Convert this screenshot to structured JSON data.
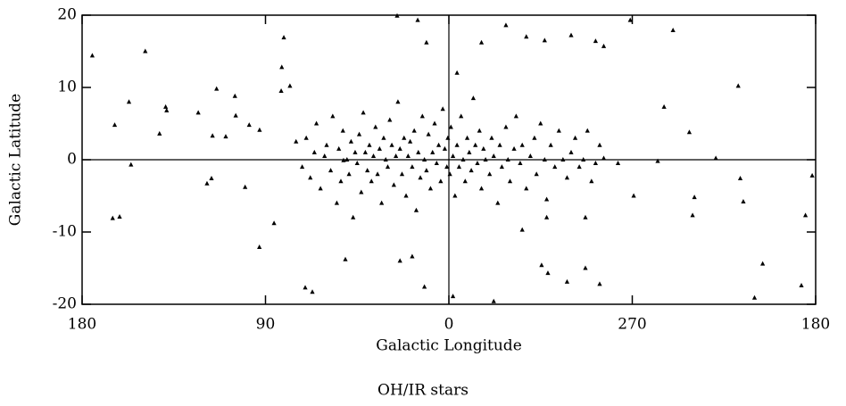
{
  "chart_data": {
    "type": "scatter",
    "title": "OH/IR stars",
    "x_label": "Galactic Longitude",
    "y_label": "Galactic Latitude",
    "color": "#000000",
    "xlim": [
      180,
      -180
    ],
    "xticks": [
      180,
      90,
      0,
      {
        "value": -90,
        "label": "270"
      },
      {
        "value": -180,
        "label": "180"
      }
    ],
    "ylim": [
      -20,
      20
    ],
    "yticks": [
      -20,
      -10,
      0,
      10,
      20
    ],
    "x": [
      175,
      149,
      157,
      139,
      138.5,
      142,
      164,
      123,
      114,
      109.5,
      105,
      104.6,
      116,
      118.7,
      116.5,
      165,
      161.6,
      156,
      98,
      100,
      93,
      85.8,
      92.9,
      81,
      82,
      82.3,
      78,
      70.5,
      67,
      50.8,
      51.7,
      25.4,
      15.3,
      11,
      -4,
      24,
      18,
      12,
      -2,
      -22,
      -16,
      -28,
      -38,
      -47,
      -60,
      -72,
      -76,
      -89,
      -105.6,
      -110,
      -118,
      -119.6,
      -120.5,
      -131,
      -142,
      -143,
      -144.5,
      -150,
      -154,
      -175,
      -173,
      -178.3,
      -67,
      -74,
      -58,
      -45.5,
      -48.6,
      -36,
      -90.7,
      -102.5,
      -83,
      -67,
      -48,
      75,
      72,
      70,
      68,
      66,
      65,
      63,
      61,
      60,
      58,
      57,
      55,
      54,
      53,
      52,
      50,
      49,
      48,
      47,
      46,
      45,
      44,
      43,
      42,
      41,
      40,
      39,
      38,
      37,
      36,
      35,
      34,
      33,
      32,
      31,
      30,
      29,
      28,
      27,
      26,
      25,
      24,
      23,
      22,
      21,
      20,
      19,
      18,
      17,
      16,
      15,
      14,
      13,
      12,
      11,
      10,
      9,
      8,
      7,
      6,
      5,
      4,
      3,
      2,
      1,
      0.5,
      -0.5,
      -1,
      -2,
      -3,
      -4,
      -5,
      -6,
      -7,
      -8,
      -9,
      -10,
      -11,
      -12,
      -13,
      -14,
      -15,
      -16,
      -17,
      -18,
      -20,
      -21,
      -22,
      -24,
      -25,
      -26,
      -28,
      -29,
      -30,
      -32,
      -33,
      -35,
      -36,
      -38,
      -40,
      -42,
      -43,
      -45,
      -47,
      -48,
      -50,
      -52,
      -54,
      -56,
      -58,
      -60,
      -62,
      -64,
      -66,
      -68,
      -70,
      -72,
      -74,
      -76
    ],
    "values": [
      14.4,
      15,
      8,
      7.3,
      6.8,
      3.6,
      4.8,
      6.5,
      9.8,
      3.2,
      8.8,
      6.1,
      3.3,
      -3.3,
      -2.6,
      -8.1,
      -7.9,
      -0.7,
      4.8,
      -3.8,
      -12.1,
      -8.8,
      4.1,
      16.9,
      12.8,
      9.5,
      10.2,
      -17.7,
      -18.3,
      -13.8,
      -0.1,
      19.9,
      19.3,
      16.2,
      12,
      -14,
      -13.4,
      -17.6,
      -18.9,
      -19.6,
      16.2,
      18.6,
      17,
      16.5,
      17.2,
      16.4,
      15.7,
      19.3,
      7.3,
      17.9,
      3.8,
      -7.7,
      -5.2,
      0.2,
      10.2,
      -2.6,
      -5.8,
      -19.1,
      -14.4,
      -7.7,
      -17.4,
      -2.2,
      -15,
      -17.2,
      -16.9,
      -14.6,
      -15.7,
      -9.7,
      -5,
      -0.2,
      -0.5,
      -8,
      -8,
      2.5,
      -1,
      3,
      -2.5,
      1,
      5,
      -4,
      0.5,
      2,
      -1.5,
      6,
      -6,
      1.5,
      -3,
      4,
      0,
      -2,
      2.5,
      -8,
      1,
      -0.5,
      3.5,
      -4.5,
      6.5,
      1,
      -1.5,
      2,
      -3,
      0.5,
      4.5,
      -2,
      1.5,
      -6,
      3,
      0,
      -1,
      5.5,
      2,
      -3.5,
      0.5,
      8,
      1.5,
      -2,
      3,
      -5,
      0.5,
      2.5,
      -1,
      4,
      -7,
      1,
      -2.5,
      6,
      0,
      -1.5,
      3.5,
      -4,
      1,
      5,
      -0.5,
      2,
      -3,
      7,
      1.5,
      -1,
      3,
      -2,
      4.5,
      0.5,
      -5,
      2,
      -1,
      6,
      0,
      -3,
      3,
      1,
      -1.5,
      8.5,
      2,
      -0.5,
      4,
      -4,
      1.5,
      0,
      -2,
      3,
      0.5,
      -6,
      2,
      -1,
      4.5,
      0,
      -3,
      1.5,
      6,
      -0.5,
      2,
      -4,
      0.5,
      3,
      -2,
      5,
      0,
      -5.5,
      2,
      -1,
      4,
      0,
      -2.5,
      1,
      3,
      -1,
      0,
      4,
      -3,
      -0.5,
      2,
      0.2
    ]
  }
}
